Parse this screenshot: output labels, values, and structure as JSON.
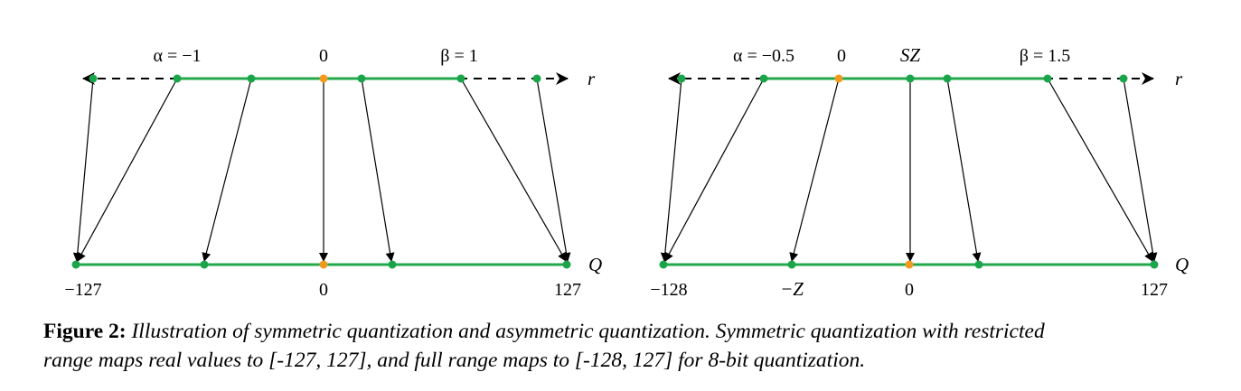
{
  "colors": {
    "line_green": "#22a84a",
    "dot_green": "#1aa54a",
    "dot_orange": "#f39a1e",
    "arrow": "#000000"
  },
  "panels": [
    {
      "id": "symmetric",
      "top_labels": {
        "alpha": "α = −1",
        "zero": "0",
        "beta": "β = 1"
      },
      "top_axis_label": "r",
      "bottom_axis_label": "Q",
      "bottom_labels": {
        "min": "−127",
        "zero": "0",
        "max": "127"
      }
    },
    {
      "id": "asymmetric",
      "top_labels": {
        "alpha": "α = −0.5",
        "zero": "0",
        "sz": "SZ",
        "beta": "β = 1.5"
      },
      "top_axis_label": "r",
      "bottom_axis_label": "Q",
      "bottom_labels": {
        "min": "−128",
        "negz": "−Z",
        "zero": "0",
        "max": "127"
      }
    }
  ],
  "caption": {
    "label": "Figure 2:",
    "text_line1": "Illustration of symmetric quantization and asymmetric quantization. Symmetric quantization with restricted",
    "text_line2": "range maps real values to [-127, 127], and full range maps to [-128, 127] for 8-bit quantization."
  }
}
